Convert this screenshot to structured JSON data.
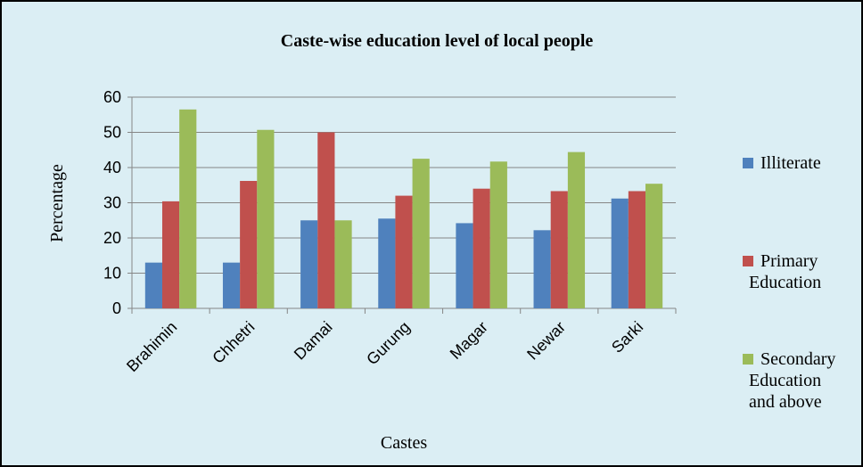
{
  "chart_data": {
    "type": "bar",
    "title": "Caste-wise education level of local people",
    "x_label": "Castes",
    "y_label": "Percentage",
    "categories": [
      "Brahimin",
      "Chhetri",
      "Damai",
      "Gurung",
      "Magar",
      "Newar",
      "Sarki"
    ],
    "series": [
      {
        "name": "Illiterate",
        "color": "#4f81bd",
        "values": [
          13,
          13,
          25,
          25.5,
          24.2,
          22.2,
          31.2
        ]
      },
      {
        "name": "Primary Education",
        "color": "#c0504d",
        "values": [
          30.4,
          36.2,
          50,
          32,
          34,
          33.3,
          33.3
        ]
      },
      {
        "name": "Secondary Education and above",
        "color": "#9bbb59",
        "values": [
          56.5,
          50.7,
          25,
          42.5,
          41.7,
          44.4,
          35.4
        ]
      }
    ],
    "ylim": [
      0,
      60
    ],
    "yticks": [
      0,
      10,
      20,
      30,
      40,
      50,
      60
    ],
    "grid": true,
    "legend": "right"
  }
}
